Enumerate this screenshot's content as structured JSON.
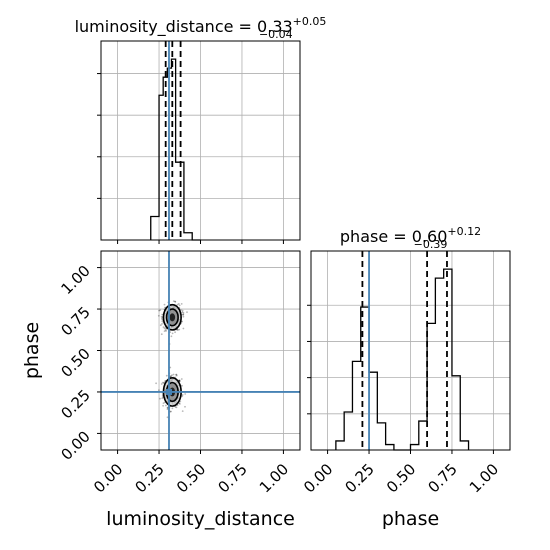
{
  "chart_data": {
    "type": "corner",
    "truth_color": "#4682b4",
    "line_color": "#000000",
    "grid": true,
    "parameters": [
      {
        "name": "luminosity_distance",
        "xlabel": "luminosity_distance",
        "xlim": [
          -0.1,
          1.1
        ],
        "ticks": [
          "0.00",
          "0.25",
          "0.50",
          "0.75",
          "1.00"
        ],
        "tick_values": [
          0,
          0.25,
          0.5,
          0.75,
          1.0
        ],
        "title_prefix": "luminosity_distance = ",
        "title_value": "0.33",
        "title_plus": "+0.05",
        "title_minus": "−0.04",
        "quantiles": [
          0.29,
          0.33,
          0.38
        ],
        "truth": 0.31,
        "histogram": {
          "bins": [
            0.2,
            0.25,
            0.275,
            0.3,
            0.325,
            0.35,
            0.375,
            0.4,
            0.45,
            0.5
          ],
          "counts": [
            0.13,
            0.8,
            0.9,
            0.95,
            1.0,
            0.43,
            0.43,
            0.04,
            0.0
          ]
        }
      },
      {
        "name": "phase",
        "xlabel": "phase",
        "ylabel": "phase",
        "xlim": [
          -0.1,
          1.1
        ],
        "ylim": [
          -0.1,
          1.1
        ],
        "ticks": [
          "0.00",
          "0.25",
          "0.50",
          "0.75",
          "1.00"
        ],
        "tick_values": [
          0,
          0.25,
          0.5,
          0.75,
          1.0
        ],
        "title_prefix": "phase = ",
        "title_value": "0.60",
        "title_plus": "+0.12",
        "title_minus": "−0.39",
        "quantiles": [
          0.21,
          0.6,
          0.72
        ],
        "truth": 0.25,
        "histogram": {
          "bins": [
            0.05,
            0.1,
            0.15,
            0.2,
            0.25,
            0.3,
            0.35,
            0.4,
            0.45,
            0.5,
            0.55,
            0.6,
            0.65,
            0.7,
            0.75,
            0.8,
            0.85
          ],
          "counts": [
            0.05,
            0.21,
            0.49,
            0.79,
            0.43,
            0.15,
            0.03,
            0.0,
            0.0,
            0.03,
            0.16,
            0.7,
            0.95,
            1.0,
            0.41,
            0.05
          ]
        }
      }
    ],
    "joint": {
      "x_param": "luminosity_distance",
      "y_param": "phase",
      "clusters": [
        {
          "cx": 0.33,
          "cy": 0.25,
          "sx": 0.028,
          "sy": 0.045
        },
        {
          "cx": 0.33,
          "cy": 0.7,
          "sx": 0.028,
          "sy": 0.04
        }
      ],
      "truth": [
        0.31,
        0.25
      ]
    }
  }
}
